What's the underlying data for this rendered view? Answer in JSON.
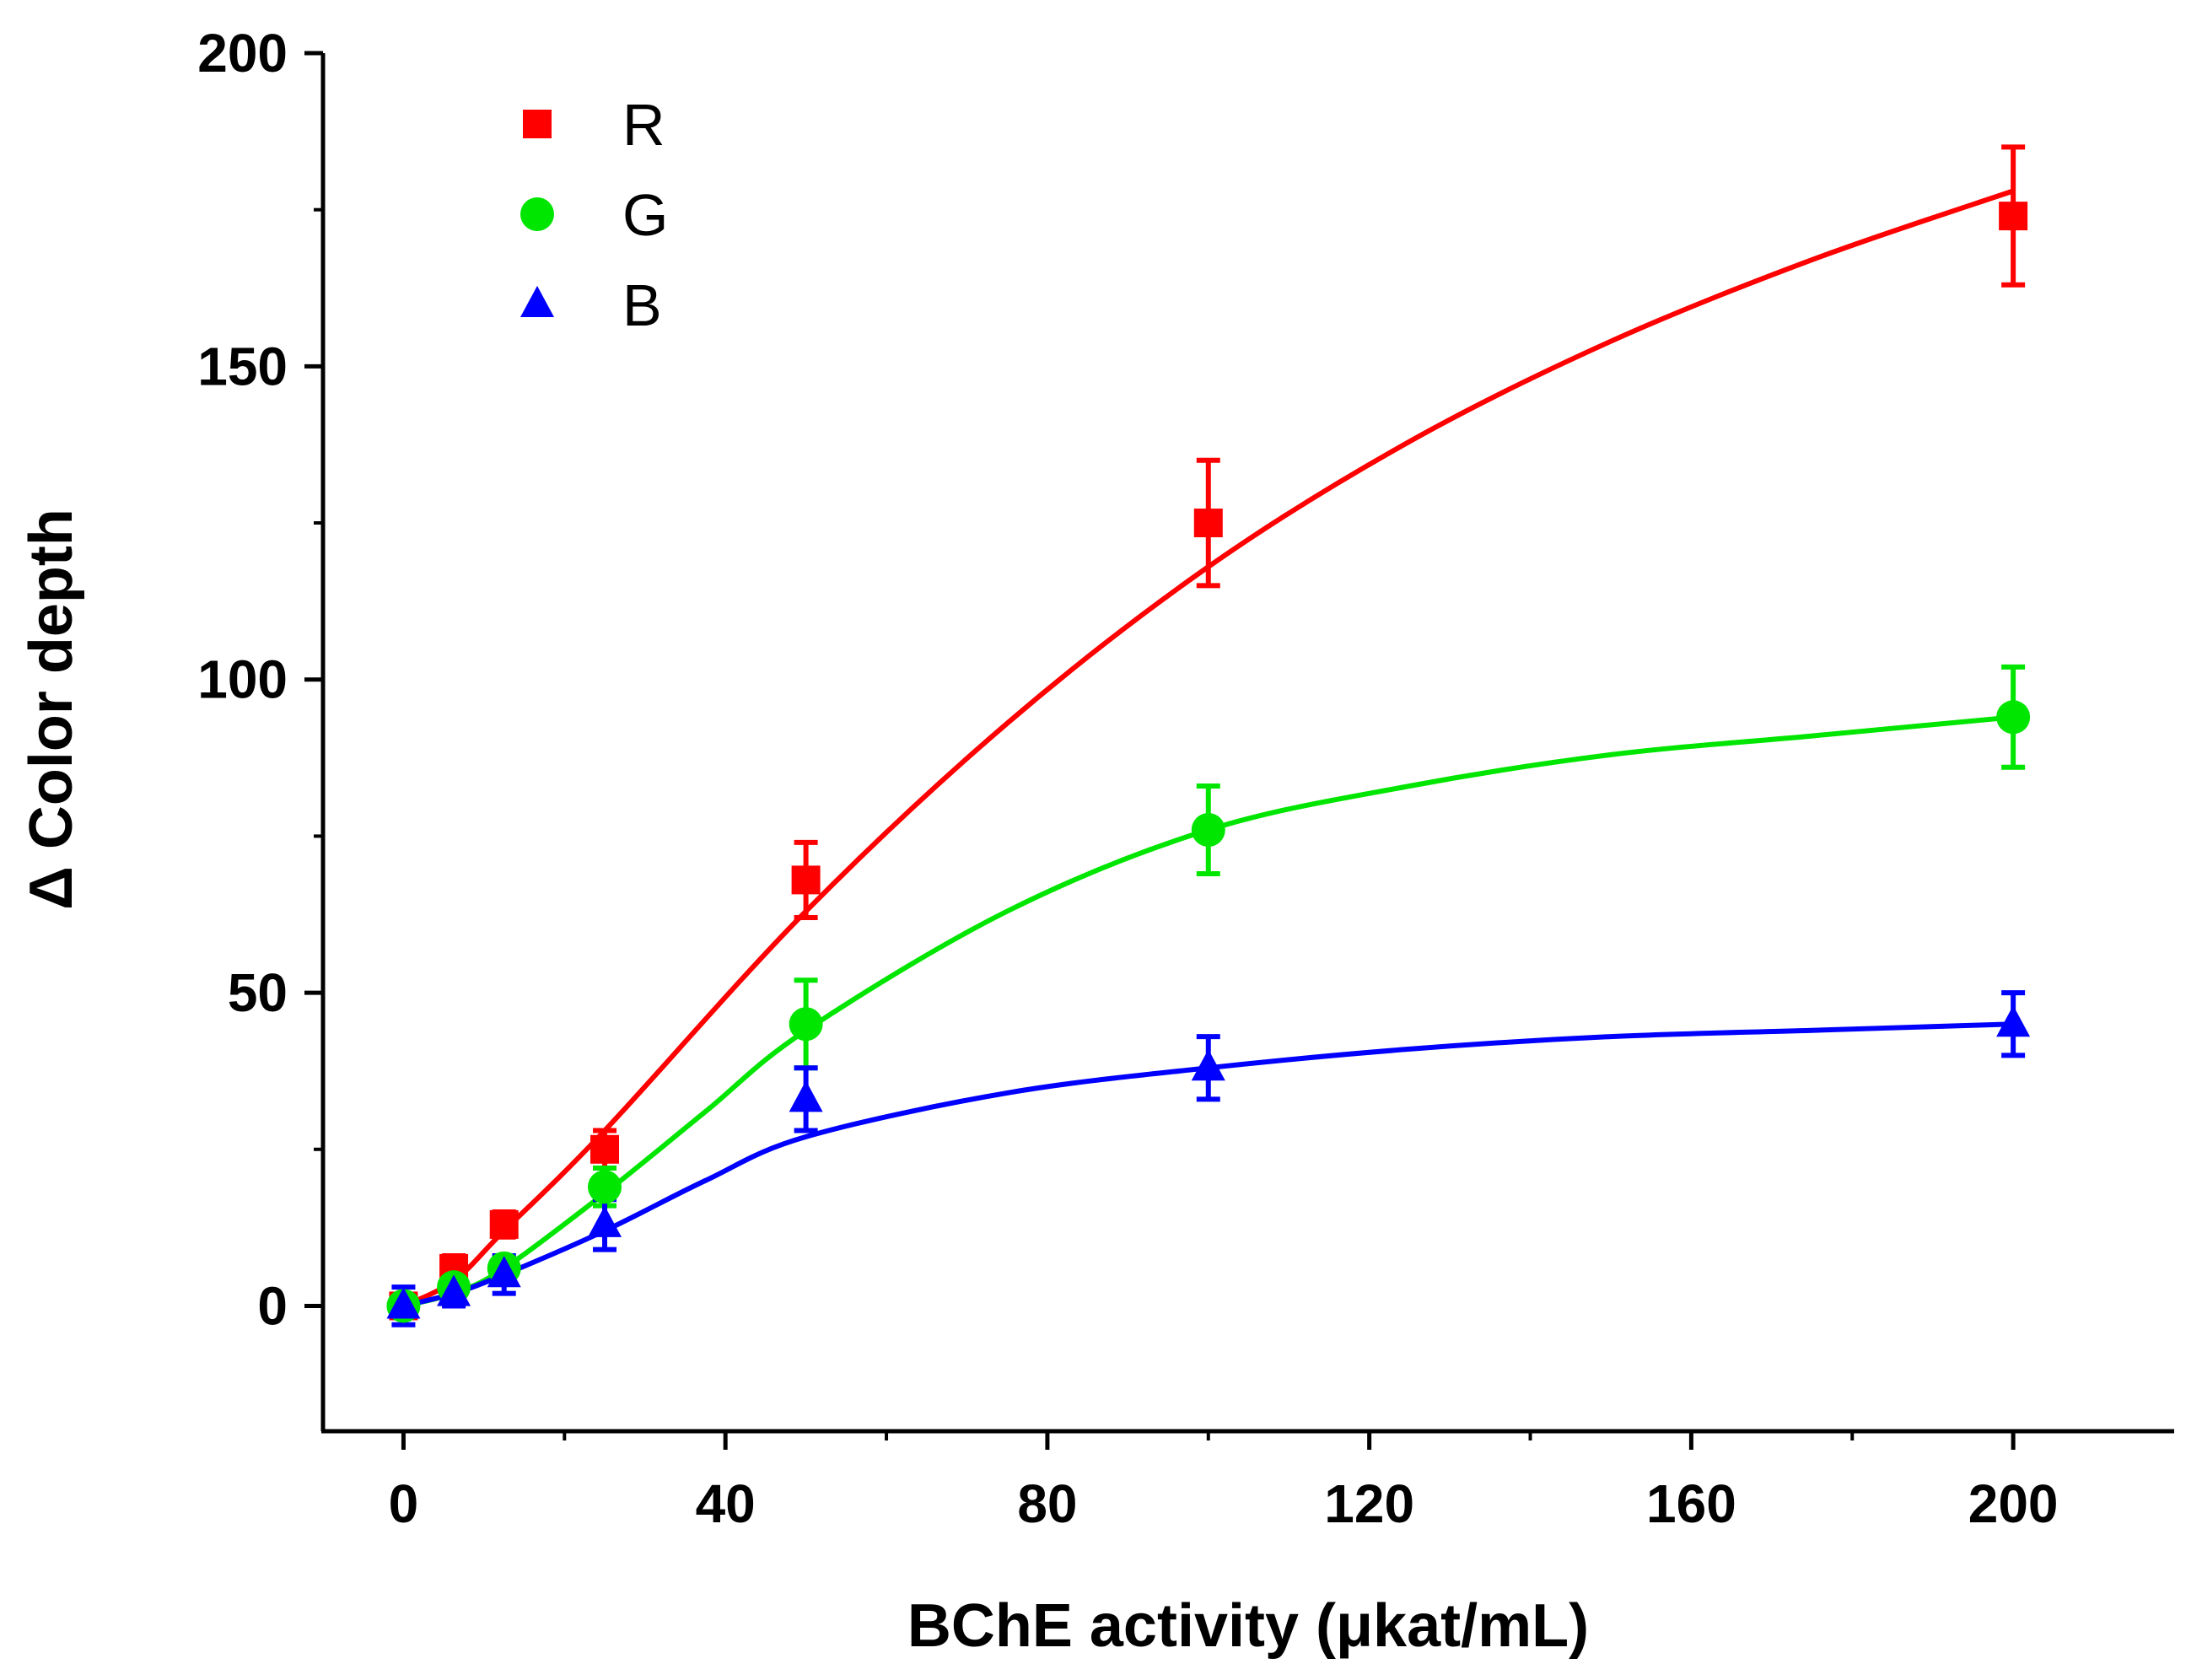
{
  "chart_data": {
    "type": "line",
    "title": "",
    "xlabel": "BChE activity (μkat/mL)",
    "ylabel": "Δ Color depth",
    "xlim": [
      -10,
      220
    ],
    "ylim": [
      -20,
      200
    ],
    "xticks": [
      0,
      40,
      80,
      120,
      160,
      200
    ],
    "yticks": [
      0,
      50,
      100,
      150,
      200
    ],
    "xtick_labels": [
      "0",
      "40",
      "80",
      "120",
      "160",
      "200"
    ],
    "ytick_labels": [
      "0",
      "50",
      "100",
      "150",
      "200"
    ],
    "grid": false,
    "legend_position": "top-left",
    "series": [
      {
        "name": "R",
        "color": "#ff0000",
        "marker": "square",
        "x": [
          0,
          6.25,
          12.5,
          25,
          50,
          100,
          200
        ],
        "values": [
          0,
          6,
          13,
          25,
          68,
          125,
          174
        ],
        "errors": [
          1.5,
          2,
          2,
          3,
          6,
          10,
          11
        ],
        "fit": {
          "x": [
            0,
            6.25,
            12.5,
            25,
            50,
            75,
            100,
            125,
            150,
            175,
            200
          ],
          "y": [
            0,
            4,
            12,
            28,
            63,
            93,
            118,
            138,
            154,
            167,
            178
          ]
        }
      },
      {
        "name": "G",
        "color": "#00e600",
        "marker": "circle",
        "x": [
          0,
          6.25,
          12.5,
          25,
          50,
          100,
          200
        ],
        "values": [
          0,
          3,
          6,
          19,
          45,
          76,
          94
        ],
        "errors": [
          1.5,
          1.5,
          2,
          3,
          7,
          7,
          8
        ],
        "fit": {
          "x": [
            0,
            6.25,
            12.5,
            25,
            37.5,
            50,
            75,
            100,
            125,
            150,
            175,
            200
          ],
          "y": [
            0,
            2,
            6,
            18,
            31,
            44,
            63,
            76,
            83,
            88,
            91,
            94
          ]
        }
      },
      {
        "name": "B",
        "color": "#0000ff",
        "marker": "triangle",
        "x": [
          0,
          6.25,
          12.5,
          25,
          50,
          100,
          200
        ],
        "values": [
          0,
          2,
          5,
          13,
          33,
          38,
          45
        ],
        "errors": [
          3,
          2,
          3,
          4,
          5,
          5,
          5
        ],
        "fit": {
          "x": [
            0,
            6.25,
            12.5,
            25,
            37.5,
            50,
            75,
            100,
            125,
            150,
            175,
            200
          ],
          "y": [
            0,
            2,
            5,
            12,
            20,
            27,
            34,
            38,
            41,
            43,
            44,
            45
          ]
        }
      }
    ]
  }
}
